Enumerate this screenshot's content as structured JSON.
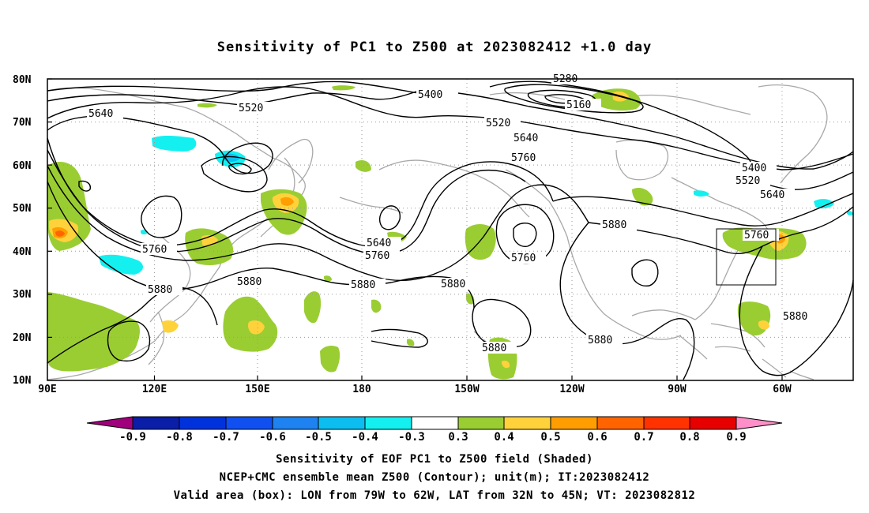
{
  "title": "Sensitivity of PC1 to Z500 at 2023082412 +1.0 day",
  "map": {
    "lat_labels": [
      "80N",
      "70N",
      "60N",
      "50N",
      "40N",
      "30N",
      "20N",
      "10N"
    ],
    "lon_labels": [
      "90E",
      "120E",
      "150E",
      "180",
      "150W",
      "120W",
      "90W",
      "60W"
    ],
    "contour_labels": [
      {
        "text": "5640",
        "id": "c1"
      },
      {
        "text": "5520",
        "id": "c2"
      },
      {
        "text": "5400",
        "id": "c3"
      },
      {
        "text": "5280",
        "id": "c4"
      },
      {
        "text": "5160",
        "id": "c5"
      },
      {
        "text": "5520",
        "id": "c6"
      },
      {
        "text": "5640",
        "id": "c7"
      },
      {
        "text": "5760",
        "id": "c8"
      },
      {
        "text": "5400",
        "id": "c9"
      },
      {
        "text": "5520",
        "id": "c10"
      },
      {
        "text": "5640",
        "id": "c11"
      },
      {
        "text": "5760",
        "id": "c12"
      },
      {
        "text": "5880",
        "id": "c13"
      },
      {
        "text": "5760",
        "id": "c14"
      },
      {
        "text": "5640",
        "id": "c15"
      },
      {
        "text": "5760",
        "id": "c16"
      },
      {
        "text": "5880",
        "id": "c17"
      },
      {
        "text": "5880",
        "id": "c18"
      },
      {
        "text": "5880",
        "id": "c19"
      },
      {
        "text": "5880",
        "id": "c20"
      },
      {
        "text": "5760",
        "id": "c21"
      },
      {
        "text": "5880",
        "id": "c22"
      },
      {
        "text": "5880",
        "id": "c23"
      },
      {
        "text": "5880",
        "id": "c24"
      }
    ],
    "valid_box": {
      "lon_from": "79W",
      "lon_to": "62W",
      "lat_from": "32N",
      "lat_to": "45N"
    }
  },
  "colorbar": {
    "labels": [
      "-0.9",
      "-0.8",
      "-0.7",
      "-0.6",
      "-0.5",
      "-0.4",
      "-0.3",
      "0.3",
      "0.4",
      "0.5",
      "0.6",
      "0.7",
      "0.8",
      "0.9"
    ],
    "colors": [
      "#a0007c",
      "#0a1ea8",
      "#0032dc",
      "#1150f0",
      "#1e82f0",
      "#0cbef0",
      "#14f0f0",
      "#ffffff",
      "#9acd32",
      "#ffd23c",
      "#ff9e00",
      "#ff6400",
      "#ff3200",
      "#e60000",
      "#ff8fc8"
    ]
  },
  "captions": {
    "line1": "Sensitivity of EOF PC1 to Z500 field (Shaded)",
    "line2": "NCEP+CMC ensemble mean Z500 (Contour); unit(m); IT:2023082412",
    "line3": "Valid area (box): LON from 79W to 62W, LAT from 32N to 45N; VT: 2023082812"
  }
}
